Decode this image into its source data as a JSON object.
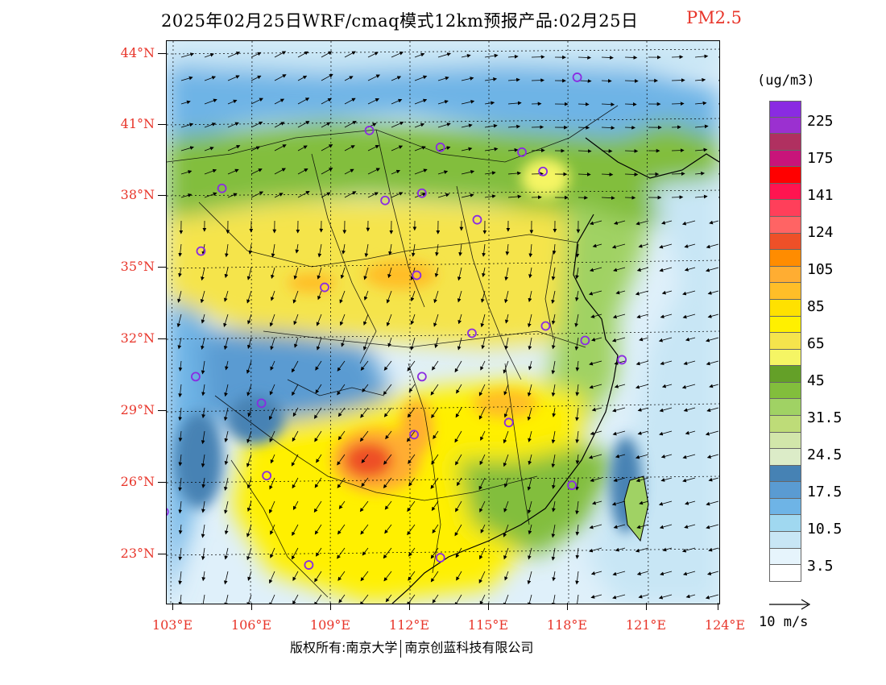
{
  "title": {
    "main": "2025年02月25日WRF/cmaq模式12km预报产品:02月25日",
    "pollutant": "PM2.5",
    "pollutant_color": "#e8352a"
  },
  "axes": {
    "lat_labels": [
      "44°N",
      "41°N",
      "38°N",
      "35°N",
      "32°N",
      "29°N",
      "26°N",
      "23°N"
    ],
    "lon_labels": [
      "103°E",
      "106°E",
      "109°E",
      "112°E",
      "115°E",
      "118°E",
      "121°E",
      "124°E"
    ],
    "label_color": "#e8352a"
  },
  "colorbar": {
    "unit": "(ug/m3)",
    "colors": [
      "#8a2be2",
      "#9b30d0",
      "#b03060",
      "#c8147a",
      "#ff0000",
      "#ff1450",
      "#ff3f5a",
      "#ff6464",
      "#ee5028",
      "#ff8c00",
      "#ffad32",
      "#ffbe28",
      "#ffe100",
      "#fff000",
      "#f5e44c",
      "#f5f564",
      "#64a028",
      "#82be3c",
      "#a0d264",
      "#bedc78",
      "#d2e6aa",
      "#dcecc8",
      "#4682b4",
      "#5a9bd2",
      "#6eb4e6",
      "#a0d8f0",
      "#c8e6f5",
      "#e6f4fc",
      "#ffffff"
    ],
    "labels": [
      "225",
      "175",
      "141",
      "124",
      "105",
      "85",
      "65",
      "45",
      "31.5",
      "24.5",
      "17.5",
      "10.5",
      "3.5"
    ]
  },
  "wind_reference": {
    "label": "10 m/s"
  },
  "copyright": {
    "left": "版权所有:南京大学",
    "right": "南京创蓝科技有限公司"
  },
  "map": {
    "description_icon": "pm25-concentration-map",
    "cities": [
      {
        "lon": 118.5,
        "lat": 43.0
      },
      {
        "lon": 110.6,
        "lat": 40.8
      },
      {
        "lon": 113.3,
        "lat": 40.1
      },
      {
        "lon": 116.4,
        "lat": 39.9
      },
      {
        "lon": 117.2,
        "lat": 39.1
      },
      {
        "lon": 105.0,
        "lat": 38.4
      },
      {
        "lon": 111.2,
        "lat": 37.9
      },
      {
        "lon": 112.6,
        "lat": 38.2
      },
      {
        "lon": 114.7,
        "lat": 37.1
      },
      {
        "lon": 104.2,
        "lat": 35.8
      },
      {
        "lon": 108.9,
        "lat": 34.3
      },
      {
        "lon": 112.4,
        "lat": 34.8
      },
      {
        "lon": 117.3,
        "lat": 32.7
      },
      {
        "lon": 114.5,
        "lat": 32.4
      },
      {
        "lon": 118.8,
        "lat": 32.1
      },
      {
        "lon": 120.2,
        "lat": 31.3
      },
      {
        "lon": 104.0,
        "lat": 30.6
      },
      {
        "lon": 106.5,
        "lat": 29.5
      },
      {
        "lon": 112.6,
        "lat": 30.6
      },
      {
        "lon": 112.3,
        "lat": 28.2
      },
      {
        "lon": 115.9,
        "lat": 28.7
      },
      {
        "lon": 106.7,
        "lat": 26.5
      },
      {
        "lon": 118.3,
        "lat": 26.1
      },
      {
        "lon": 102.8,
        "lat": 25.0
      },
      {
        "lon": 108.3,
        "lat": 22.8
      },
      {
        "lon": 113.3,
        "lat": 23.1
      }
    ]
  }
}
